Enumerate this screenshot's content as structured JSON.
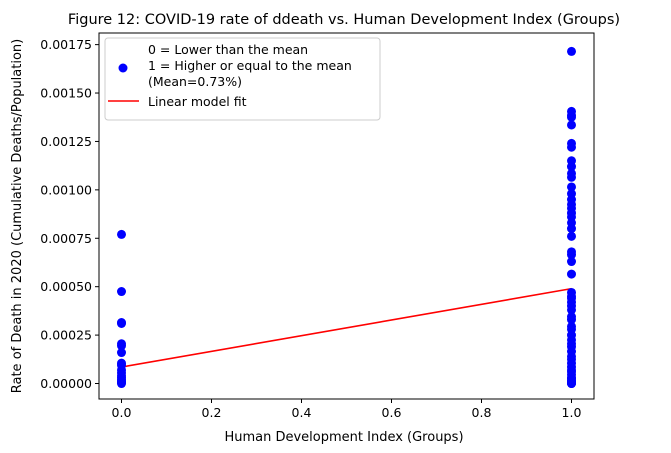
{
  "chart_data": {
    "type": "scatter",
    "title": "Figure 12: COVID-19 rate of ddeath vs. Human Development Index (Groups)",
    "xlabel": "Human Development Index (Groups)",
    "ylabel": "Rate of Death in 2020 (Cumulative Deaths/Population)",
    "xlim": [
      -0.05,
      1.05
    ],
    "ylim": [
      -8e-05,
      0.00181
    ],
    "xticks": [
      0.0,
      0.2,
      0.4,
      0.6,
      0.8,
      1.0
    ],
    "xtick_labels": [
      "0.0",
      "0.2",
      "0.4",
      "0.6",
      "0.8",
      "1.0"
    ],
    "yticks": [
      0.0,
      0.00025,
      0.0005,
      0.00075,
      0.001,
      0.00125,
      0.0015,
      0.00175
    ],
    "ytick_labels": [
      "0.00000",
      "0.00025",
      "0.00050",
      "0.00075",
      "0.00100",
      "0.00125",
      "0.00150",
      "0.00175"
    ],
    "grid": false,
    "legend_position": "top-left",
    "series": [
      {
        "name": "0 = Lower than the mean\n1 = Higher or equal to the mean\n(Mean=0.73%)",
        "legend_lines": [
          "0 = Lower than the mean",
          "1 = Higher or equal to the mean",
          "(Mean=0.73%)"
        ],
        "kind": "scatter",
        "color": "#0000ff",
        "x": [
          0,
          0,
          0,
          0,
          0,
          0,
          0,
          0,
          0,
          0,
          0,
          0,
          0,
          0,
          0,
          0,
          0,
          1,
          1,
          1,
          1,
          1,
          1,
          1,
          1,
          1,
          1,
          1,
          1,
          1,
          1,
          1,
          1,
          1,
          1,
          1,
          1,
          1,
          1,
          1,
          1,
          1,
          1,
          1,
          1,
          1,
          1,
          1,
          1,
          1,
          1,
          1,
          1,
          1,
          1,
          1,
          1,
          1,
          1,
          1,
          1,
          1,
          1,
          1,
          1,
          1,
          1,
          1,
          1,
          1,
          1,
          1
        ],
        "y": [
          0.00077,
          0.000475,
          0.000315,
          0.00031,
          0.000205,
          0.000195,
          0.00016,
          0.000105,
          9.5e-05,
          7e-05,
          5.5e-05,
          4e-05,
          3e-05,
          2e-05,
          1.2e-05,
          5e-06,
          0.0,
          0.001715,
          0.001405,
          0.001385,
          0.001375,
          0.001335,
          0.00124,
          0.00122,
          0.00115,
          0.00112,
          0.001085,
          0.001065,
          0.001015,
          0.00098,
          0.00095,
          0.000925,
          0.000905,
          0.00088,
          0.00086,
          0.00083,
          0.0008,
          0.00076,
          0.00068,
          0.000665,
          0.00063,
          0.000565,
          0.00047,
          0.00045,
          0.00044,
          0.00042,
          0.0004,
          0.00038,
          0.000345,
          0.00033,
          0.000295,
          0.00028,
          0.00025,
          0.000225,
          0.000205,
          0.00019,
          0.000165,
          0.00014,
          0.000125,
          0.000105,
          8.5e-05,
          7e-05,
          6e-05,
          4.5e-05,
          3e-05,
          2.5e-05,
          1.5e-05,
          1e-05,
          5e-06,
          2e-06,
          0.0,
          0.0
        ]
      },
      {
        "name": "Linear model fit",
        "kind": "line",
        "color": "#ff0000",
        "x": [
          0,
          1
        ],
        "y": [
          8.5e-05,
          0.00049
        ]
      }
    ]
  }
}
